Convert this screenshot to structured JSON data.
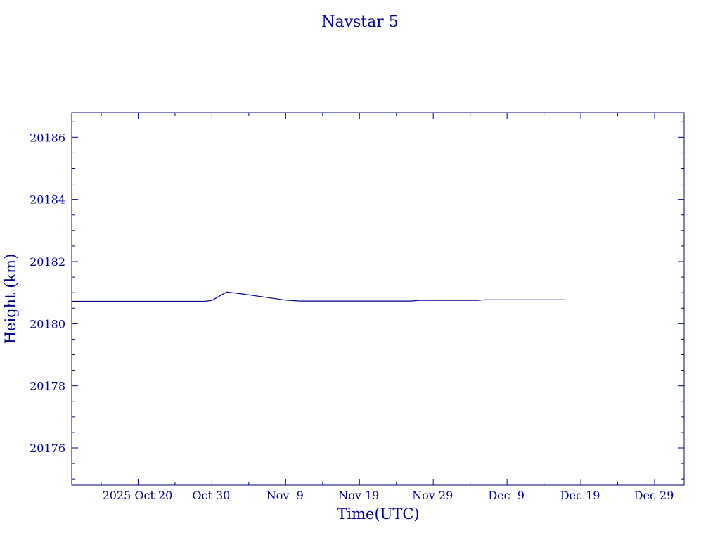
{
  "chart_data": {
    "type": "line",
    "title": "Navstar 5",
    "xlabel": "Time(UTC)",
    "ylabel": "Height (km)",
    "color": "#00008b",
    "background": "#ffffff",
    "x_range": [
      "2025-10-11",
      "2026-01-02"
    ],
    "y_range": [
      20174.8,
      20186.8
    ],
    "x_ticks": [
      {
        "date": "2025-10-20",
        "label": "2025 Oct 20"
      },
      {
        "date": "2025-10-30",
        "label": "Oct 30"
      },
      {
        "date": "2025-11-09",
        "label": "Nov  9"
      },
      {
        "date": "2025-11-19",
        "label": "Nov 19"
      },
      {
        "date": "2025-11-29",
        "label": "Nov 29"
      },
      {
        "date": "2025-12-09",
        "label": "Dec  9"
      },
      {
        "date": "2025-12-19",
        "label": "Dec 19"
      },
      {
        "date": "2025-12-29",
        "label": "Dec 29"
      }
    ],
    "y_ticks": [
      {
        "value": 20176,
        "label": "20176"
      },
      {
        "value": 20178,
        "label": "20178"
      },
      {
        "value": 20180,
        "label": "20180"
      },
      {
        "value": 20182,
        "label": "20182"
      },
      {
        "value": 20184,
        "label": "20184"
      },
      {
        "value": 20186,
        "label": "20186"
      }
    ],
    "series": [
      {
        "points": [
          {
            "x": "2025-10-11",
            "y": 20180.72
          },
          {
            "x": "2025-10-21",
            "y": 20180.72
          },
          {
            "x": "2025-10-29",
            "y": 20180.72
          },
          {
            "x": "2025-10-30",
            "y": 20180.75
          },
          {
            "x": "2025-11-01",
            "y": 20181.02
          },
          {
            "x": "2025-11-03",
            "y": 20180.96
          },
          {
            "x": "2025-11-06",
            "y": 20180.86
          },
          {
            "x": "2025-11-09",
            "y": 20180.76
          },
          {
            "x": "2025-11-11",
            "y": 20180.73
          },
          {
            "x": "2025-11-20",
            "y": 20180.73
          },
          {
            "x": "2025-11-26",
            "y": 20180.73
          },
          {
            "x": "2025-11-27",
            "y": 20180.75
          },
          {
            "x": "2025-12-05",
            "y": 20180.75
          },
          {
            "x": "2025-12-06",
            "y": 20180.77
          },
          {
            "x": "2025-12-17",
            "y": 20180.77
          }
        ]
      }
    ]
  }
}
